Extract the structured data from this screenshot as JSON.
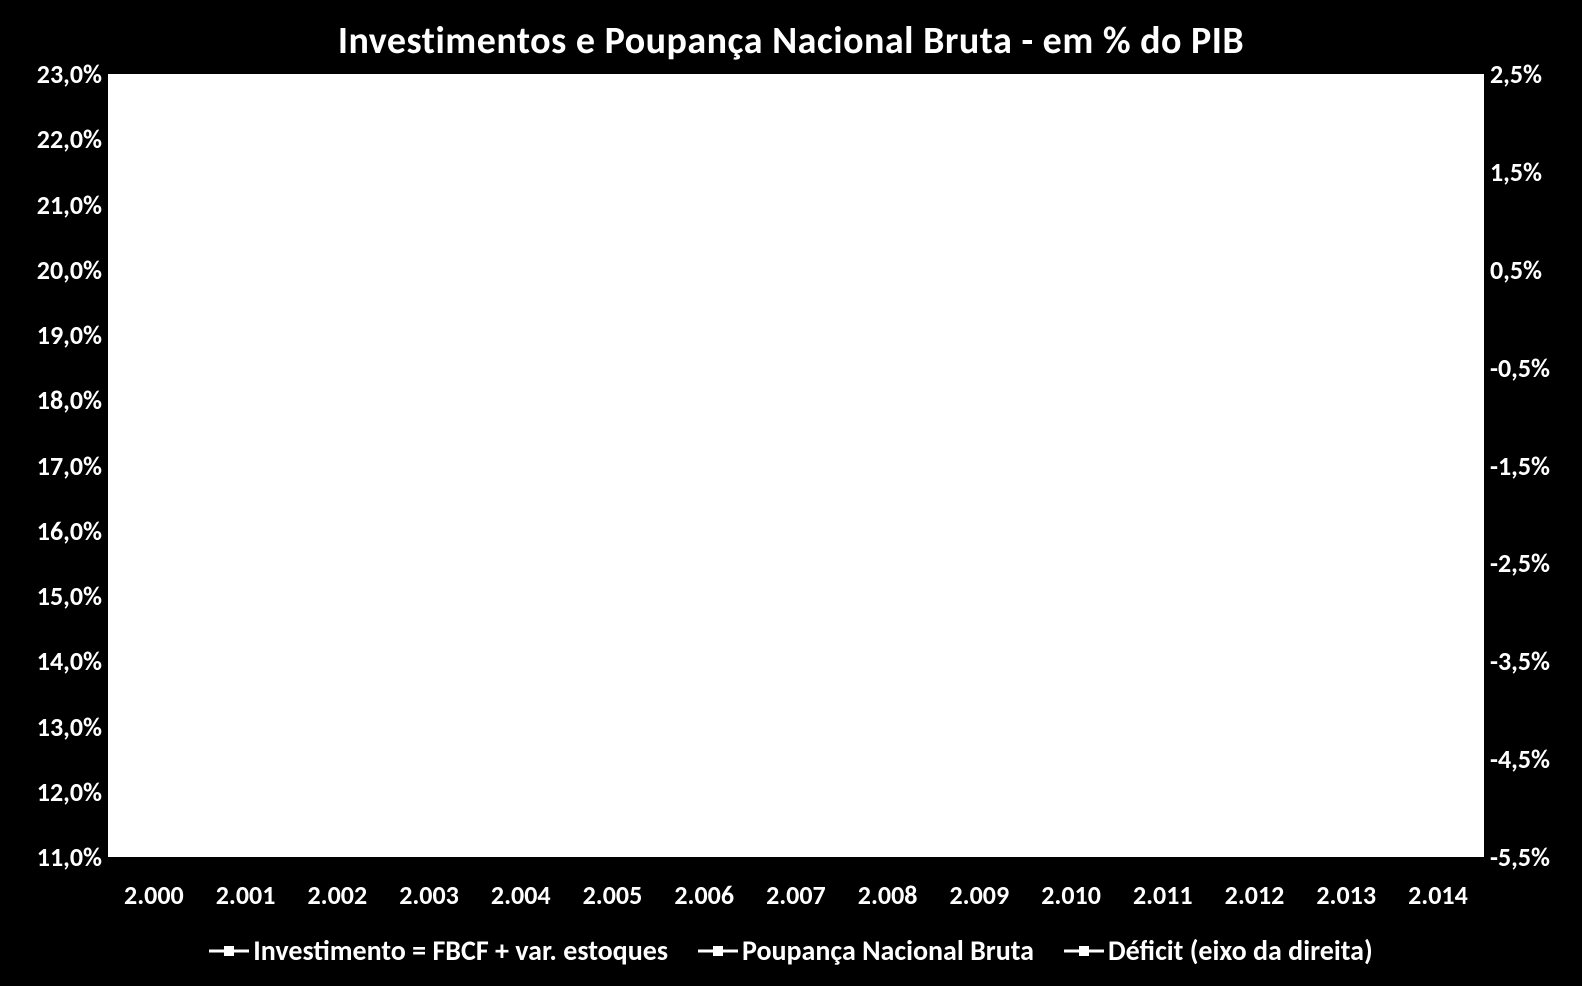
{
  "chart": {
    "type": "line",
    "title": "Investimentos e Poupança Nacional Bruta - em % do PIB",
    "title_fontsize": 38,
    "title_fontweight": 700,
    "title_color": "#ffffff",
    "background_color": "#000000",
    "plot_background_color": "#ffffff",
    "axis_label_color": "#ffffff",
    "axis_label_fontsize": 26,
    "axis_label_fontweight": 700,
    "x_axis": {
      "categories": [
        "2.000",
        "2.001",
        "2.002",
        "2.003",
        "2.004",
        "2.005",
        "2.006",
        "2.007",
        "2.008",
        "2.009",
        "2.010",
        "2.011",
        "2.012",
        "2.013",
        "2.014"
      ]
    },
    "y_axis_left": {
      "min": 11.0,
      "max": 23.0,
      "tick_step": 1.0,
      "ticks": [
        "23,0%",
        "22,0%",
        "21,0%",
        "20,0%",
        "19,0%",
        "18,0%",
        "17,0%",
        "16,0%",
        "15,0%",
        "14,0%",
        "13,0%",
        "12,0%",
        "11,0%"
      ],
      "suffix": "%"
    },
    "y_axis_right": {
      "min": -5.5,
      "max": 2.5,
      "tick_step": 1.0,
      "ticks": [
        "2,5%",
        "1,5%",
        "0,5%",
        "-0,5%",
        "-1,5%",
        "-2,5%",
        "-3,5%",
        "-4,5%",
        "-5,5%"
      ],
      "suffix": "%"
    },
    "series": [
      {
        "name": "Investimento = FBCF + var. estoques",
        "axis": "left",
        "marker": "square",
        "line_width": 3,
        "color": "#ffffff",
        "values": []
      },
      {
        "name": "Poupança Nacional Bruta",
        "axis": "left",
        "marker": "square",
        "line_width": 3,
        "color": "#ffffff",
        "values": []
      },
      {
        "name": "Déficit (eixo da direita)",
        "axis": "right",
        "marker": "square",
        "line_width": 3,
        "color": "#ffffff",
        "values": []
      }
    ],
    "legend": {
      "position": "bottom",
      "fontsize": 28,
      "fontweight": 700,
      "color": "#ffffff",
      "marker_style": "line-square"
    }
  }
}
